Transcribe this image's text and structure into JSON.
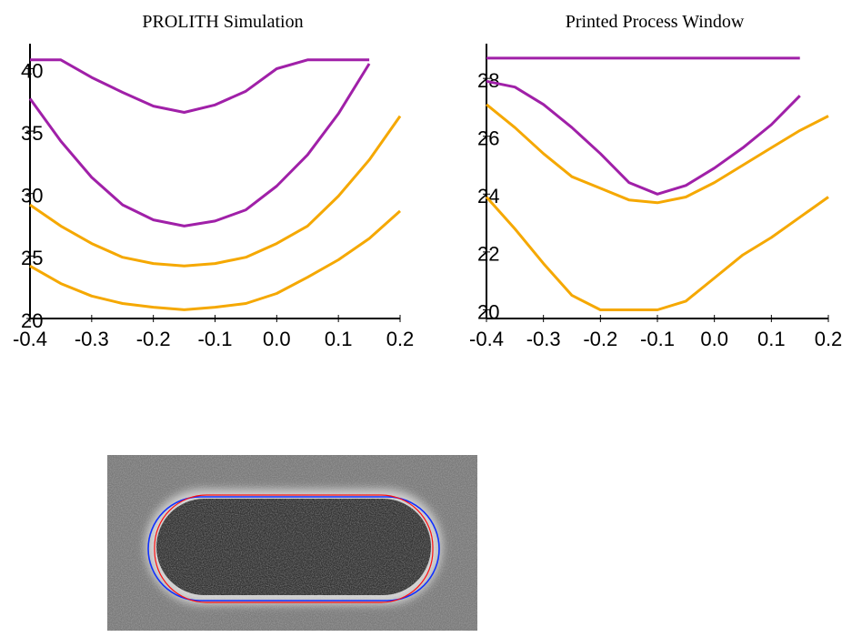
{
  "chart_data": [
    {
      "type": "line",
      "title": "PROLITH Simulation",
      "x": [
        -0.4,
        -0.35,
        -0.3,
        -0.25,
        -0.2,
        -0.15,
        -0.1,
        -0.05,
        0,
        0.05,
        0.1,
        0.15,
        0.2
      ],
      "series": [
        {
          "color": "#a020a8",
          "values": [
            40.7,
            40.7,
            39.3,
            38.1,
            37.0,
            36.5,
            37.1,
            38.2,
            40.0,
            40.7,
            40.7,
            40.7,
            null
          ]
        },
        {
          "color": "#a020a8",
          "values": [
            37.6,
            34.2,
            31.3,
            29.1,
            27.9,
            27.4,
            27.8,
            28.7,
            30.6,
            33.1,
            36.4,
            40.4,
            null
          ]
        },
        {
          "color": "#f5a800",
          "values": [
            29.1,
            27.4,
            26.0,
            24.9,
            24.4,
            24.2,
            24.4,
            24.9,
            26.0,
            27.4,
            29.8,
            32.7,
            36.2
          ]
        },
        {
          "color": "#f5a800",
          "values": [
            24.2,
            22.8,
            21.8,
            21.2,
            20.9,
            20.7,
            20.9,
            21.2,
            22.0,
            23.3,
            24.7,
            26.4,
            28.6
          ]
        }
      ],
      "xlim": [
        -0.4,
        0.2
      ],
      "xticks": [
        -0.4,
        -0.3,
        -0.2,
        -0.1,
        {
          "value": 0,
          "label": "0.0"
        },
        0.1,
        0.2
      ],
      "ylim": [
        20,
        42
      ],
      "yticks": [
        20,
        25,
        30,
        35,
        40
      ]
    },
    {
      "type": "line",
      "title": "Printed Process Window",
      "x": [
        -0.4,
        -0.35,
        -0.3,
        -0.25,
        -0.2,
        -0.15,
        -0.1,
        -0.05,
        0,
        0.05,
        0.1,
        0.15,
        0.2
      ],
      "series": [
        {
          "color": "#a020a8",
          "values": [
            28.7,
            28.7,
            28.7,
            28.7,
            28.7,
            28.7,
            28.7,
            28.7,
            28.7,
            28.7,
            28.7,
            28.7,
            null
          ]
        },
        {
          "color": "#a020a8",
          "values": [
            27.9,
            27.7,
            27.1,
            26.3,
            25.4,
            24.4,
            24.0,
            24.3,
            24.9,
            25.6,
            26.4,
            27.4,
            null
          ]
        },
        {
          "color": "#f5a800",
          "values": [
            27.1,
            26.3,
            25.4,
            24.6,
            24.2,
            23.8,
            23.7,
            23.9,
            24.4,
            25.0,
            25.6,
            26.2,
            26.7
          ]
        },
        {
          "color": "#f5a800",
          "values": [
            23.9,
            22.8,
            21.6,
            20.5,
            20.0,
            20.0,
            20.0,
            20.3,
            21.1,
            21.9,
            22.5,
            23.2,
            23.9
          ]
        }
      ],
      "xlim": [
        -0.4,
        0.2
      ],
      "xticks": [
        -0.4,
        -0.3,
        -0.2,
        -0.1,
        {
          "value": 0,
          "label": "0.0"
        },
        0.1,
        0.2
      ],
      "ylim": [
        19.7,
        29.2
      ],
      "yticks": [
        20,
        22,
        24,
        26,
        28
      ]
    }
  ]
}
